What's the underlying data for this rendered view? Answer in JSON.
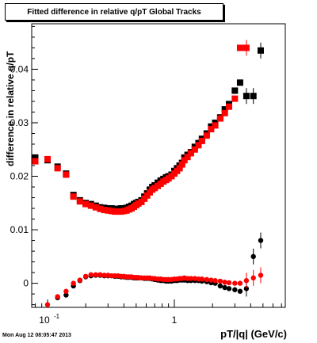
{
  "chart_data": {
    "type": "scatter",
    "title": "Fitted difference in relative q/pT  Global Tracks",
    "xlabel": "pT/|q| (GeV/c)",
    "ylabel": "difference in relative q/pT",
    "x_scale": "log",
    "xlim": [
      0.075,
      7.5
    ],
    "ylim": [
      -0.0045,
      0.0485
    ],
    "x_tick_labels": [
      "10^-1",
      "1"
    ],
    "y_tick_labels": [
      "0",
      "0.01",
      "0.02",
      "0.03",
      "0.04"
    ],
    "y_ticks": [
      0,
      0.01,
      0.02,
      0.03,
      0.04
    ],
    "series": [
      {
        "color": "#000000",
        "x": [
          0.08,
          0.1,
          0.12,
          0.14,
          0.16,
          0.18,
          0.2,
          0.22,
          0.24,
          0.26,
          0.28,
          0.3,
          0.32,
          0.34,
          0.36,
          0.38,
          0.4,
          0.42,
          0.44,
          0.46,
          0.48,
          0.5,
          0.52,
          0.55,
          0.58,
          0.61,
          0.64,
          0.67,
          0.7,
          0.74,
          0.78,
          0.82,
          0.86,
          0.9,
          0.95,
          1.0,
          1.05,
          1.1,
          1.15,
          1.2,
          1.27,
          1.35,
          1.45,
          1.55,
          1.65,
          1.8,
          1.95,
          2.1,
          2.3,
          2.5,
          2.7,
          3.0,
          3.3,
          3.7,
          4.2,
          4.8
        ],
        "y_upper": [
          0.0235,
          0.023,
          0.0218,
          0.0205,
          0.0165,
          0.0155,
          0.015,
          0.0148,
          0.0145,
          0.0142,
          0.0141,
          0.014,
          0.014,
          0.0139,
          0.0139,
          0.014,
          0.014,
          0.0141,
          0.0143,
          0.0145,
          0.0148,
          0.015,
          0.0152,
          0.0155,
          0.0162,
          0.0168,
          0.0175,
          0.018,
          0.0183,
          0.0188,
          0.0192,
          0.0195,
          0.0198,
          0.02,
          0.0203,
          0.021,
          0.0215,
          0.022,
          0.0225,
          0.0235,
          0.024,
          0.0245,
          0.0255,
          0.0262,
          0.027,
          0.028,
          0.0293,
          0.03,
          0.031,
          0.0325,
          0.0335,
          0.036,
          0.0375,
          0.035,
          0.035,
          0.0435
        ],
        "y_lower": [
          null,
          null,
          -0.0027,
          -0.0022,
          -0.0005,
          0.0005,
          0.0012,
          0.0014,
          0.0015,
          0.0015,
          0.0014,
          0.0014,
          0.0014,
          0.0013,
          0.0013,
          0.0012,
          0.0012,
          0.0011,
          0.0011,
          0.0011,
          0.001,
          0.001,
          0.001,
          0.001,
          0.0009,
          0.0009,
          0.0009,
          0.0008,
          0.0007,
          0.0006,
          0.0005,
          0.0005,
          0.0004,
          0.0004,
          0.0004,
          0.0005,
          0.0005,
          0.0006,
          0.0006,
          0.0006,
          0.0005,
          0.0005,
          0.0005,
          0.0005,
          0.0004,
          0.0003,
          0.0001,
          0.0,
          -0.0005,
          -0.0008,
          -0.001,
          -0.0012,
          -0.0015,
          -0.001,
          0.005,
          0.008
        ]
      },
      {
        "color": "#ff0000",
        "x": [
          0.08,
          0.1,
          0.12,
          0.14,
          0.16,
          0.18,
          0.2,
          0.22,
          0.24,
          0.26,
          0.28,
          0.3,
          0.32,
          0.34,
          0.36,
          0.38,
          0.4,
          0.42,
          0.44,
          0.46,
          0.48,
          0.5,
          0.52,
          0.55,
          0.58,
          0.61,
          0.64,
          0.67,
          0.7,
          0.74,
          0.78,
          0.82,
          0.86,
          0.9,
          0.95,
          1.0,
          1.05,
          1.1,
          1.15,
          1.2,
          1.27,
          1.35,
          1.45,
          1.55,
          1.65,
          1.8,
          1.95,
          2.1,
          2.3,
          2.5,
          2.7,
          3.0,
          3.3,
          3.7,
          4.2,
          4.8
        ],
        "y_upper": [
          0.0228,
          0.0232,
          0.0215,
          0.0203,
          0.0162,
          0.0153,
          0.0148,
          0.0145,
          0.0142,
          0.0139,
          0.0137,
          0.0136,
          0.0135,
          0.0134,
          0.0134,
          0.0134,
          0.0135,
          0.0136,
          0.0138,
          0.014,
          0.0143,
          0.0146,
          0.0149,
          0.0152,
          0.0158,
          0.0164,
          0.017,
          0.0175,
          0.0178,
          0.0182,
          0.0186,
          0.019,
          0.0193,
          0.0196,
          0.02,
          0.0205,
          0.021,
          0.0215,
          0.0222,
          0.023,
          0.0236,
          0.0243,
          0.025,
          0.0258,
          0.0266,
          0.0276,
          0.0288,
          0.0295,
          0.0308,
          0.0318,
          0.033,
          0.0345,
          0.044,
          0.044,
          null,
          null
        ],
        "y_lower": [
          null,
          -0.004,
          -0.0025,
          -0.0015,
          0.0,
          0.0006,
          0.0013,
          0.0016,
          0.0016,
          0.0016,
          0.0015,
          0.0015,
          0.0014,
          0.0014,
          0.0014,
          0.0013,
          0.0013,
          0.0012,
          0.0012,
          0.0012,
          0.0011,
          0.0011,
          0.0011,
          0.001,
          0.001,
          0.001,
          0.001,
          0.0009,
          0.0009,
          0.0008,
          0.0008,
          0.0007,
          0.0007,
          0.0007,
          0.0007,
          0.0008,
          0.0008,
          0.0009,
          0.0009,
          0.001,
          0.0009,
          0.0009,
          0.0009,
          0.0008,
          0.0008,
          0.0007,
          0.0006,
          0.0005,
          0.0004,
          0.0002,
          0.0001,
          0.0,
          0.0,
          0.0005,
          0.001,
          0.0015
        ]
      }
    ]
  },
  "labels": {
    "title": "Fitted difference in relative q/pT  Global Tracks",
    "xlabel": "pT/|q| (GeV/c)",
    "ylabel": "difference in relative q/pT",
    "timestamp": "Mon Aug 12 08:05:47 2013"
  }
}
